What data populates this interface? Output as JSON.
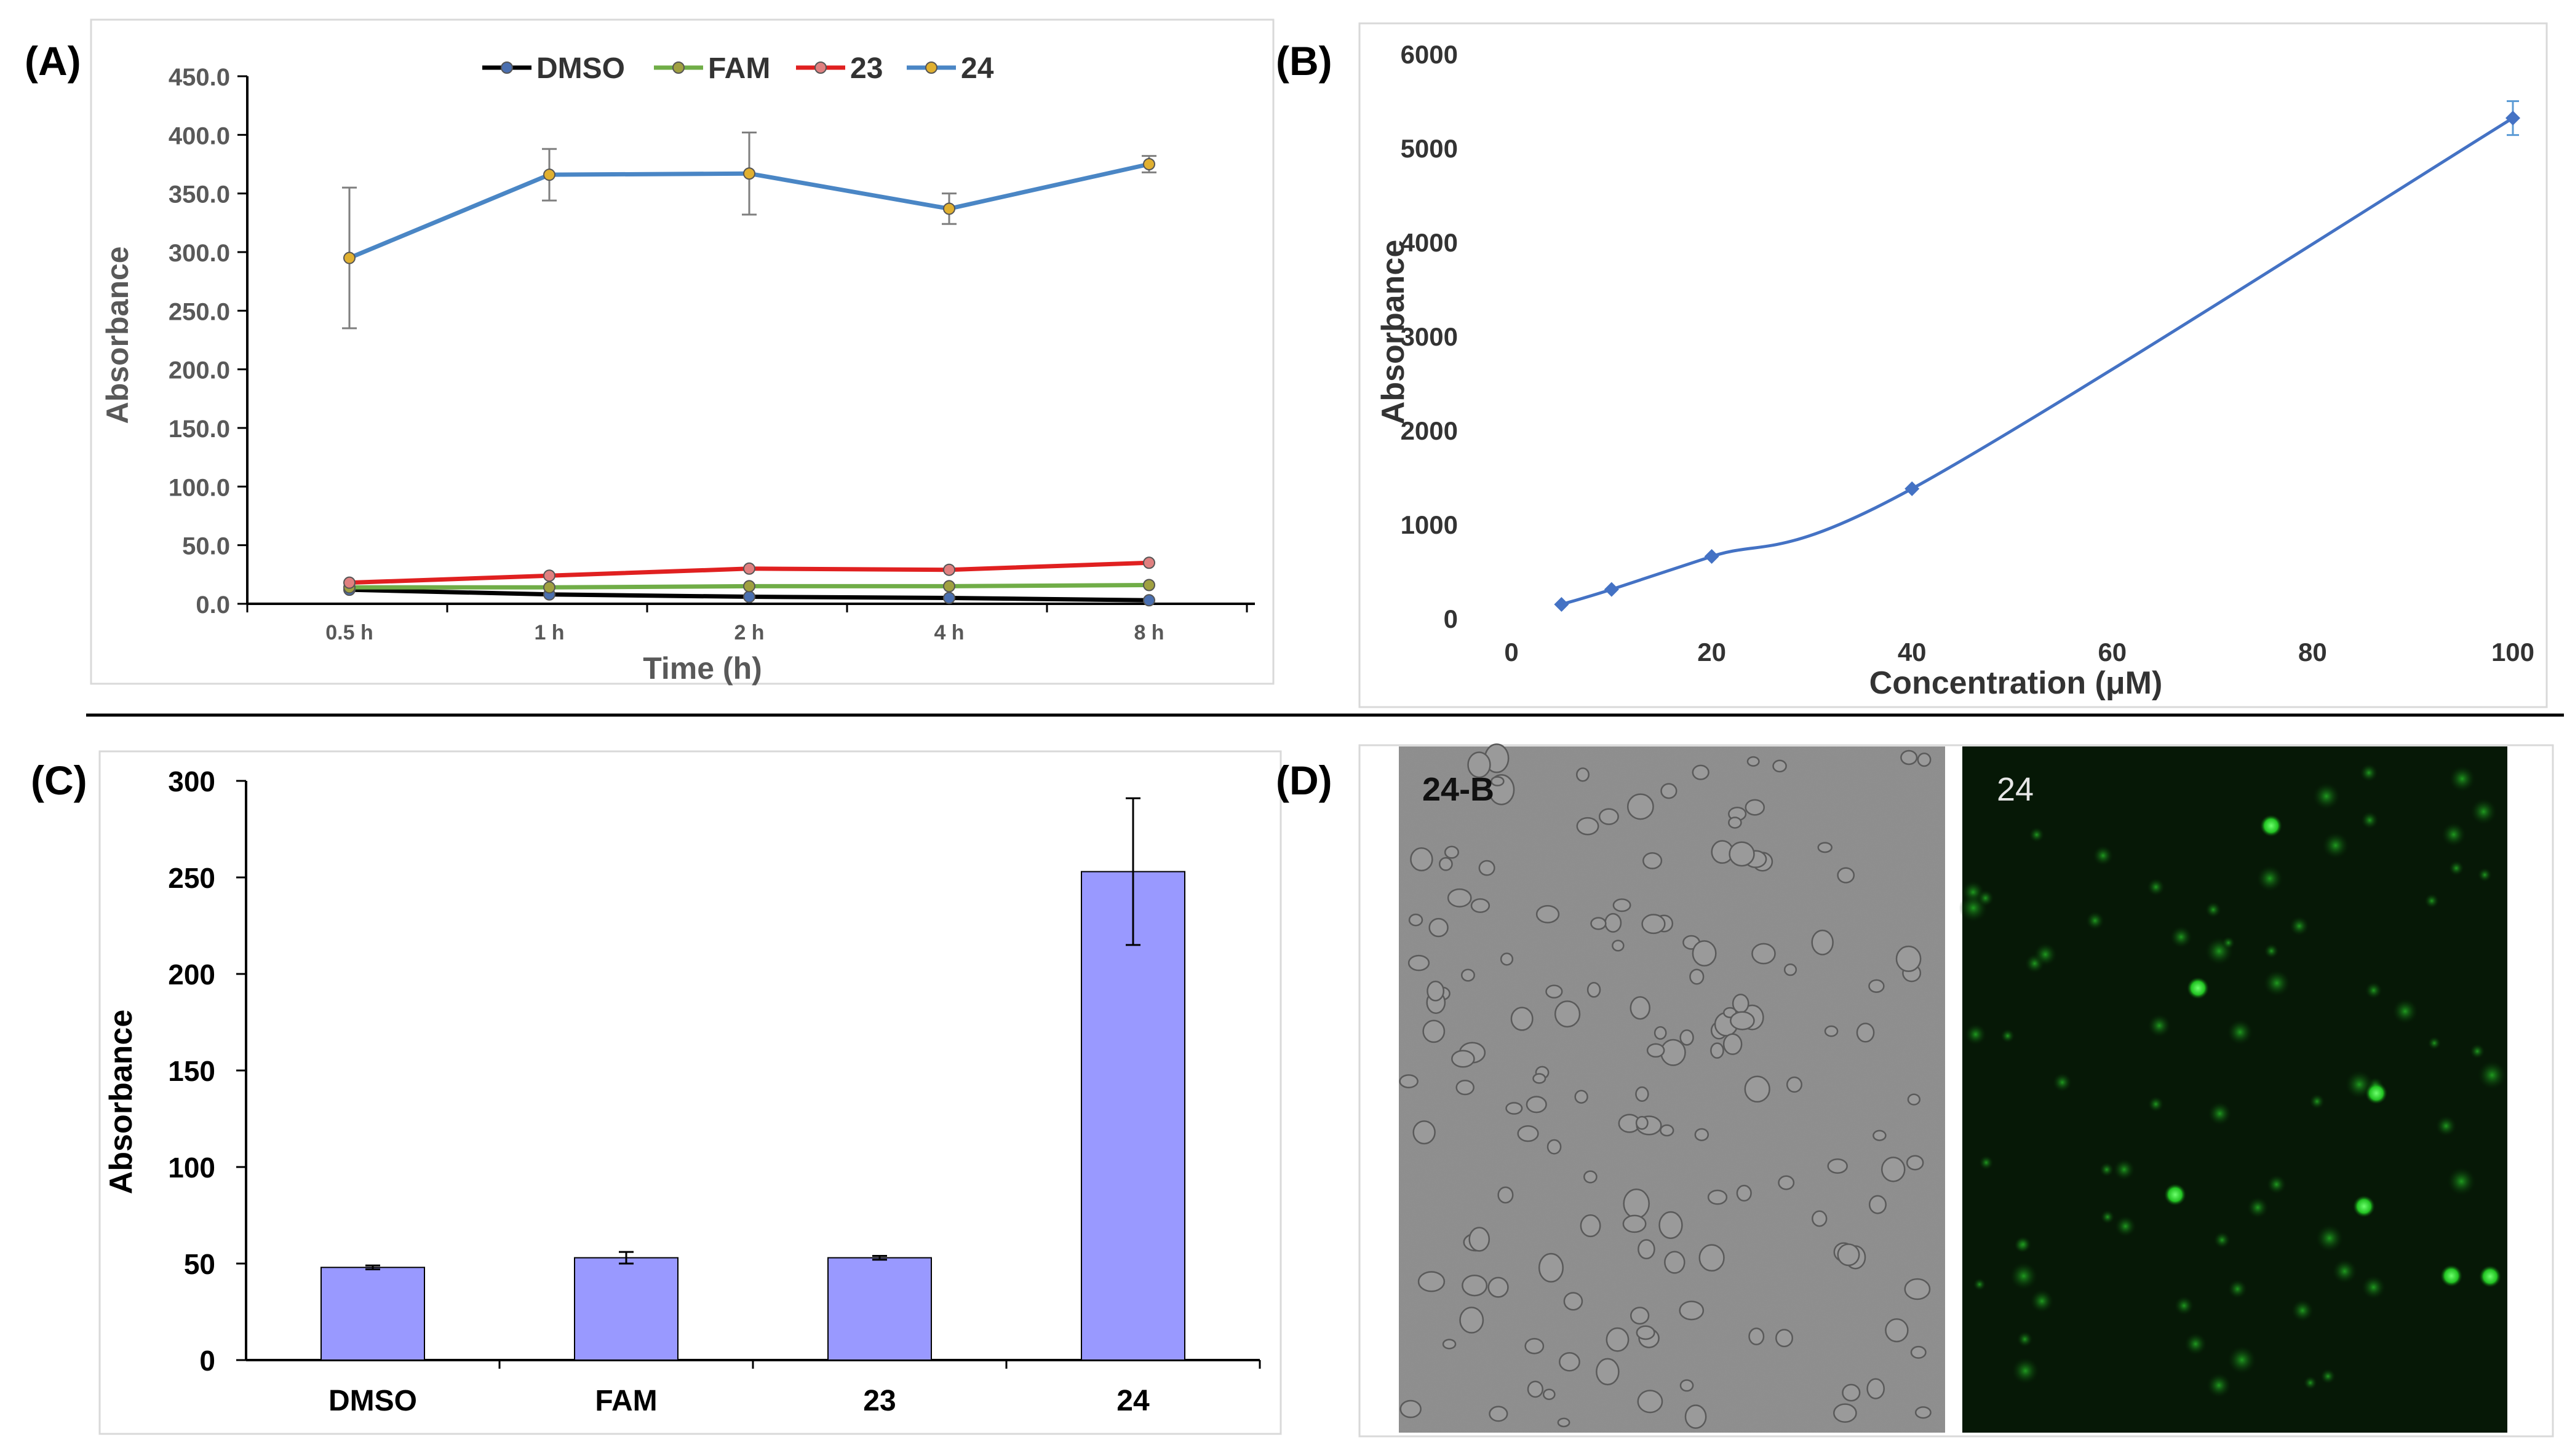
{
  "panels": {
    "a_label": "(A)",
    "b_label": "(B)",
    "c_label": "(C)",
    "d_label": "(D)"
  },
  "micrographs": {
    "bright_label": "24-B",
    "fluor_label": "24"
  },
  "chart_data": [
    {
      "id": "A",
      "type": "line",
      "categories": [
        "0.5 h",
        "1 h",
        "2 h",
        "4 h",
        "8 h"
      ],
      "xlabel": "Time (h)",
      "ylabel": "Absorbance",
      "ylim": [
        0,
        450
      ],
      "yticks": [
        0,
        50,
        100,
        150,
        200,
        250,
        300,
        350,
        400,
        450
      ],
      "ytick_labels": [
        "0.0",
        "50.0",
        "100.0",
        "150.0",
        "200.0",
        "250.0",
        "300.0",
        "350.0",
        "400.0",
        "450.0"
      ],
      "legend_position": "top-center",
      "series": [
        {
          "name": "DMSO",
          "color": "#000000",
          "marker": "#4a6fb0",
          "values": [
            12,
            8,
            6,
            5,
            3
          ],
          "errors": [
            0,
            0,
            0,
            0,
            0
          ]
        },
        {
          "name": "FAM",
          "color": "#70ad47",
          "marker": "#a0a040",
          "values": [
            14,
            14,
            15,
            15,
            16
          ],
          "errors": [
            0,
            0,
            0,
            0,
            0
          ]
        },
        {
          "name": "23",
          "color": "#e02020",
          "marker": "#e08080",
          "values": [
            18,
            24,
            30,
            29,
            35
          ],
          "errors": [
            0,
            0,
            0,
            0,
            0
          ]
        },
        {
          "name": "24",
          "color": "#4a86c5",
          "marker": "#e0b030",
          "values": [
            295,
            366,
            367,
            337,
            375
          ],
          "errors": [
            60,
            22,
            35,
            13,
            7
          ]
        }
      ]
    },
    {
      "id": "B",
      "type": "scatter",
      "x": [
        5,
        10,
        20,
        40,
        100
      ],
      "y": [
        150,
        310,
        660,
        1380,
        5320
      ],
      "errors": [
        0,
        0,
        0,
        0,
        180
      ],
      "color": "#4472c4",
      "xlabel": "Concentration (μM)",
      "ylabel": "Absorbance",
      "xlim": [
        0,
        100
      ],
      "ylim": [
        0,
        6000
      ],
      "xticks": [
        0,
        20,
        40,
        60,
        80,
        100
      ],
      "yticks": [
        0,
        1000,
        2000,
        3000,
        4000,
        5000,
        6000
      ]
    },
    {
      "id": "C",
      "type": "bar",
      "categories": [
        "DMSO",
        "FAM",
        "23",
        "24"
      ],
      "values": [
        48,
        53,
        53,
        253
      ],
      "errors": [
        1,
        3,
        1,
        38
      ],
      "color": "#9999ff",
      "xlabel": "",
      "ylabel": "Absorbance",
      "ylim": [
        0,
        300
      ],
      "yticks": [
        0,
        50,
        100,
        150,
        200,
        250,
        300
      ]
    }
  ]
}
